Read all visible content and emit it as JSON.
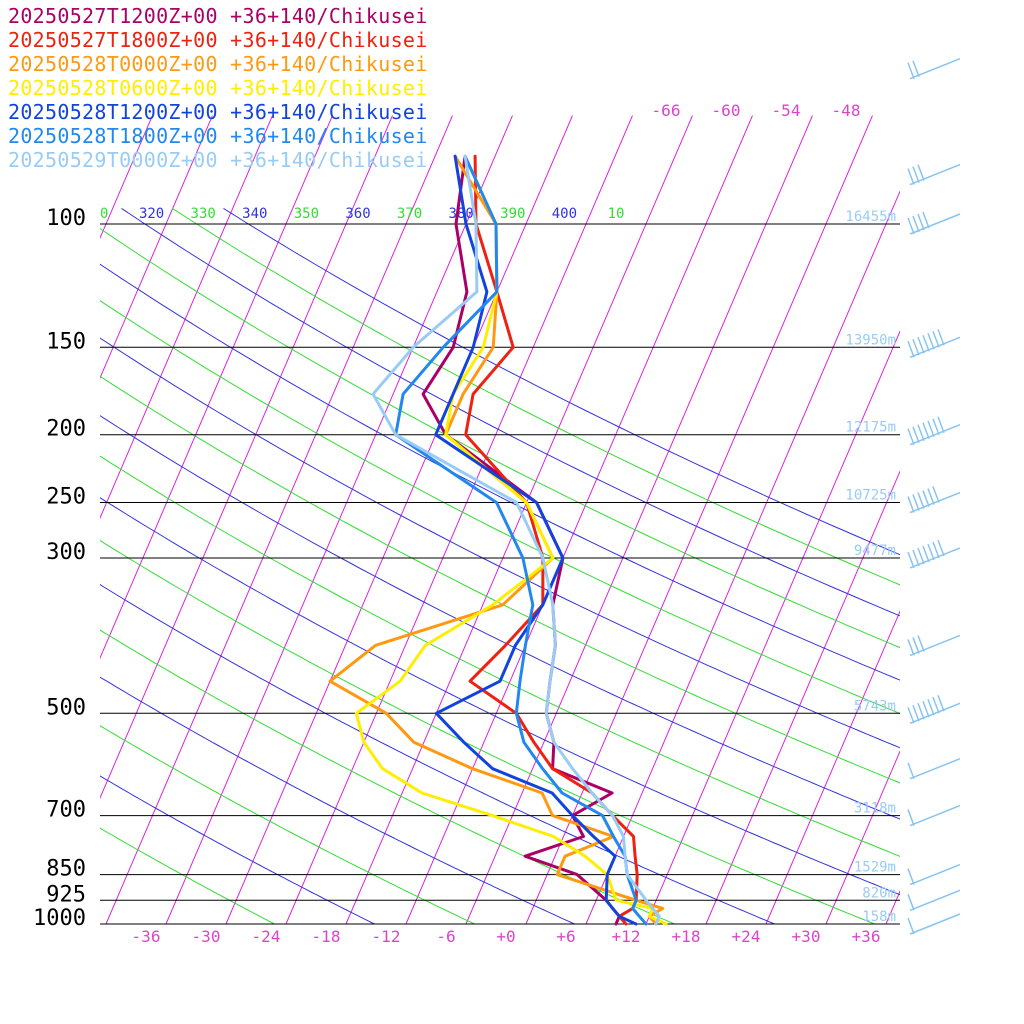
{
  "chart_data": {
    "type": "line",
    "title": "",
    "xlabel": "",
    "ylabel": "",
    "x_unit": "temperature (°C)",
    "y_unit": "pressure (hPa)",
    "xlim": [
      -40,
      40
    ],
    "ylim": [
      1000,
      100
    ],
    "y_scale": "log",
    "grid": true,
    "legend_position": "top-left",
    "pressure_levels": [
      100,
      150,
      200,
      250,
      300,
      500,
      700,
      850,
      925,
      1000
    ],
    "height_labels": [
      {
        "p": 100,
        "label": "16455m"
      },
      {
        "p": 150,
        "label": "13950m"
      },
      {
        "p": 200,
        "label": "12175m"
      },
      {
        "p": 250,
        "label": "10725m"
      },
      {
        "p": 300,
        "label": "9477m"
      },
      {
        "p": 500,
        "label": "5743m"
      },
      {
        "p": 700,
        "label": "3118m"
      },
      {
        "p": 850,
        "label": "1529m"
      },
      {
        "p": 925,
        "label": "820m"
      },
      {
        "p": 1000,
        "label": "158m"
      }
    ],
    "x_ticks": [
      "-36",
      "-30",
      "-24",
      "-18",
      "-12",
      "-6",
      "+0",
      "+6",
      "+12",
      "+18",
      "+24",
      "+30",
      "+36"
    ],
    "x_tick_values": [
      -36,
      -30,
      -24,
      -18,
      -12,
      -6,
      0,
      6,
      12,
      18,
      24,
      30,
      36
    ],
    "isotherm_top_labels": [
      {
        "t": -66,
        "label": "-66"
      },
      {
        "t": -60,
        "label": "-60"
      },
      {
        "t": -54,
        "label": "-54"
      },
      {
        "t": -48,
        "label": "-48"
      }
    ],
    "theta_labels": [
      {
        "theta": 310,
        "label": "0"
      },
      {
        "theta": 320,
        "label": "320"
      },
      {
        "theta": 330,
        "label": "330"
      },
      {
        "theta": 340,
        "label": "340"
      },
      {
        "theta": 350,
        "label": "350"
      },
      {
        "theta": 360,
        "label": "360"
      },
      {
        "theta": 370,
        "label": "370"
      },
      {
        "theta": 380,
        "label": "380"
      },
      {
        "theta": 390,
        "label": "390"
      },
      {
        "theta": 400,
        "label": "400"
      },
      {
        "theta": 410,
        "label": "10"
      }
    ],
    "series": [
      {
        "name": "20250527T1200Z+00 +36+140/Chikusei",
        "color": "#aa0066",
        "points": [
          [
            1000,
            11
          ],
          [
            975,
            11
          ],
          [
            950,
            10
          ],
          [
            925,
            9
          ],
          [
            850,
            5
          ],
          [
            800,
            -1
          ],
          [
            750,
            4
          ],
          [
            700,
            2
          ],
          [
            650,
            5
          ],
          [
            600,
            -2
          ],
          [
            550,
            -3
          ],
          [
            500,
            -5
          ],
          [
            450,
            -6
          ],
          [
            400,
            -7
          ],
          [
            350,
            -9
          ],
          [
            300,
            -10
          ],
          [
            250,
            -15
          ],
          [
            200,
            -27
          ],
          [
            175,
            -31
          ],
          [
            150,
            -30
          ],
          [
            125,
            -31
          ],
          [
            100,
            -35
          ],
          [
            80,
            -37
          ]
        ]
      },
      {
        "name": "20250527T1800Z+00 +36+140/Chikusei",
        "color": "#ee2211",
        "points": [
          [
            1000,
            12
          ],
          [
            975,
            11
          ],
          [
            950,
            12
          ],
          [
            925,
            12
          ],
          [
            850,
            11
          ],
          [
            800,
            10
          ],
          [
            750,
            9
          ],
          [
            700,
            6
          ],
          [
            650,
            3
          ],
          [
            600,
            -2
          ],
          [
            550,
            -5
          ],
          [
            500,
            -8
          ],
          [
            450,
            -14
          ],
          [
            400,
            -12
          ],
          [
            350,
            -10
          ],
          [
            300,
            -12
          ],
          [
            250,
            -16
          ],
          [
            200,
            -25
          ],
          [
            175,
            -26
          ],
          [
            150,
            -24
          ],
          [
            125,
            -28
          ],
          [
            100,
            -33
          ],
          [
            80,
            -36
          ]
        ]
      },
      {
        "name": "20250528T0000Z+00 +36+140/Chikusei",
        "color": "#ff9911",
        "points": [
          [
            1000,
            15
          ],
          [
            975,
            14
          ],
          [
            950,
            15
          ],
          [
            925,
            12
          ],
          [
            850,
            3
          ],
          [
            800,
            3
          ],
          [
            750,
            7
          ],
          [
            700,
            0
          ],
          [
            650,
            -2
          ],
          [
            600,
            -10
          ],
          [
            550,
            -17
          ],
          [
            500,
            -21
          ],
          [
            450,
            -28
          ],
          [
            400,
            -25
          ],
          [
            350,
            -14
          ],
          [
            300,
            -11
          ],
          [
            250,
            -16
          ],
          [
            200,
            -27
          ],
          [
            175,
            -27
          ],
          [
            150,
            -26
          ],
          [
            125,
            -28
          ],
          [
            100,
            -31
          ],
          [
            80,
            -38
          ]
        ]
      },
      {
        "name": "20250528T0600Z+00 +36+140/Chikusei",
        "color": "#ffee00",
        "points": [
          [
            1000,
            16
          ],
          [
            975,
            14
          ],
          [
            950,
            14
          ],
          [
            925,
            10
          ],
          [
            850,
            8
          ],
          [
            800,
            5
          ],
          [
            750,
            1
          ],
          [
            700,
            -6
          ],
          [
            650,
            -14
          ],
          [
            600,
            -19
          ],
          [
            550,
            -22
          ],
          [
            500,
            -24
          ],
          [
            450,
            -21
          ],
          [
            400,
            -20
          ],
          [
            350,
            -15
          ],
          [
            300,
            -11
          ],
          [
            250,
            -16
          ],
          [
            200,
            -27
          ],
          [
            175,
            -28
          ],
          [
            150,
            -27
          ],
          [
            125,
            -28
          ],
          [
            100,
            -31
          ],
          [
            80,
            -37
          ]
        ]
      },
      {
        "name": "20250528T1200Z+00 +36+140/Chikusei",
        "color": "#1144dd",
        "points": [
          [
            1000,
            13
          ],
          [
            975,
            11
          ],
          [
            950,
            10
          ],
          [
            925,
            9
          ],
          [
            850,
            8
          ],
          [
            800,
            8
          ],
          [
            750,
            5
          ],
          [
            700,
            2
          ],
          [
            650,
            -1
          ],
          [
            600,
            -8
          ],
          [
            550,
            -12
          ],
          [
            500,
            -16
          ],
          [
            450,
            -11
          ],
          [
            400,
            -11
          ],
          [
            350,
            -10
          ],
          [
            300,
            -10
          ],
          [
            250,
            -15
          ],
          [
            200,
            -28
          ],
          [
            175,
            -28
          ],
          [
            150,
            -28
          ],
          [
            125,
            -29
          ],
          [
            100,
            -34
          ],
          [
            80,
            -38
          ]
        ]
      },
      {
        "name": "20250528T1800Z+00 +36+140/Chikusei",
        "color": "#2288ee",
        "points": [
          [
            1000,
            14
          ],
          [
            975,
            13
          ],
          [
            950,
            12
          ],
          [
            925,
            12
          ],
          [
            850,
            10
          ],
          [
            800,
            9
          ],
          [
            750,
            7
          ],
          [
            700,
            5
          ],
          [
            650,
            0
          ],
          [
            600,
            -3
          ],
          [
            550,
            -6
          ],
          [
            500,
            -8
          ],
          [
            450,
            -9
          ],
          [
            400,
            -10
          ],
          [
            350,
            -11
          ],
          [
            300,
            -14
          ],
          [
            250,
            -19
          ],
          [
            200,
            -32
          ],
          [
            175,
            -33
          ],
          [
            150,
            -31
          ],
          [
            125,
            -28
          ],
          [
            100,
            -31
          ],
          [
            80,
            -37
          ]
        ]
      },
      {
        "name": "20250529T0000Z+00 +36+140/Chikusei",
        "color": "#99ccf5",
        "points": [
          [
            1000,
            15
          ],
          [
            975,
            15
          ],
          [
            950,
            14
          ],
          [
            925,
            13
          ],
          [
            850,
            10
          ],
          [
            800,
            9
          ],
          [
            750,
            8
          ],
          [
            700,
            6
          ],
          [
            650,
            3
          ],
          [
            600,
            0
          ],
          [
            550,
            -3
          ],
          [
            500,
            -5
          ],
          [
            450,
            -6
          ],
          [
            400,
            -7
          ],
          [
            350,
            -9
          ],
          [
            300,
            -12
          ],
          [
            250,
            -17
          ],
          [
            200,
            -32
          ],
          [
            175,
            -36
          ],
          [
            150,
            -34
          ],
          [
            125,
            -30
          ],
          [
            100,
            -33
          ],
          [
            80,
            -37
          ]
        ]
      }
    ],
    "wind_barbs": [
      {
        "p": 60,
        "kt": 20
      },
      {
        "p": 85,
        "kt": 25
      },
      {
        "p": 100,
        "kt": 35
      },
      {
        "p": 150,
        "kt": 75
      },
      {
        "p": 200,
        "kt": 65
      },
      {
        "p": 250,
        "kt": 55
      },
      {
        "p": 300,
        "kt": 70
      },
      {
        "p": 400,
        "kt": 25
      },
      {
        "p": 500,
        "kt": 65
      },
      {
        "p": 600,
        "kt": 5
      },
      {
        "p": 700,
        "kt": 5
      },
      {
        "p": 850,
        "kt": 5
      },
      {
        "p": 925,
        "kt": 5
      },
      {
        "p": 1000,
        "kt": 5
      }
    ]
  },
  "colors": {
    "isotherm": "#dd22dd",
    "dry_adiabat_blue": "#3333dd",
    "dry_adiabat_green": "#33dd33",
    "isobar": "#000000",
    "axis_label": "#dd44cc",
    "pressure_label": "#000000",
    "height_label": "#99ccf5",
    "wind_barb": "#88c4f0"
  }
}
